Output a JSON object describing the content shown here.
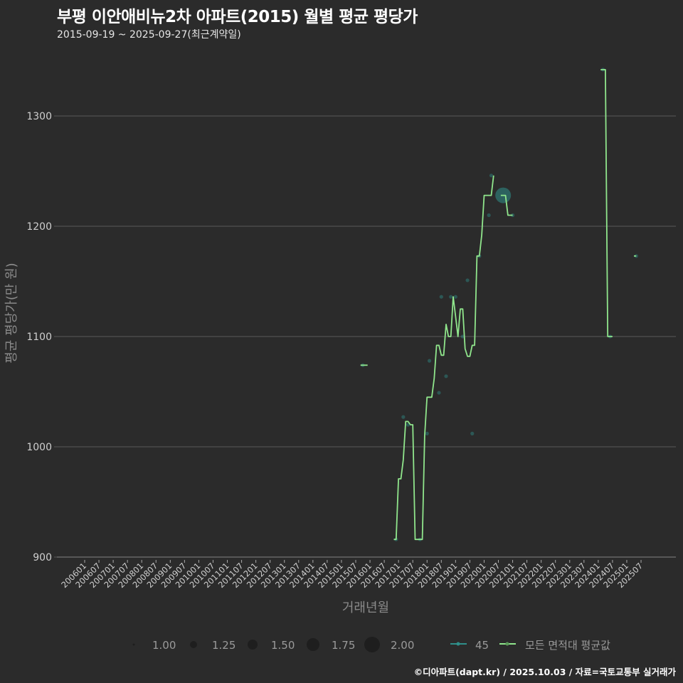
{
  "header": {
    "title": "부평 이안애비뉴2차 아파트(2015) 월별 평균 평당가",
    "subtitle": "2015-09-19 ~ 2025-09-27(최근계약일)"
  },
  "caption": "©디아파트(dapt.kr) / 2025.10.03 / 자료=국토교통부 실거래가",
  "colors": {
    "background": "#2b2b2b",
    "grid": "#5a5a5a",
    "avg_line": "#90e68c",
    "area_45": "#2f8f8a",
    "axis_text": "#cfcfcf",
    "axis_title": "#8a8a8a"
  },
  "chart_data": {
    "type": "line",
    "title": "부평 이안애비뉴2차 아파트(2015) 월별 평균 평당가",
    "subtitle": "2015-09-19 ~ 2025-09-27(최근계약일)",
    "xlabel": "거래년월",
    "ylabel": "평균 평당가(만 원)",
    "ylim": [
      895,
      1345
    ],
    "yticks": [
      900,
      1000,
      1100,
      1200,
      1300
    ],
    "xticks": [
      "200601",
      "200607",
      "200701",
      "200707",
      "200801",
      "200807",
      "200901",
      "200907",
      "201001",
      "201007",
      "201101",
      "201107",
      "201201",
      "201207",
      "201301",
      "201307",
      "201401",
      "201407",
      "201501",
      "201507",
      "201601",
      "201607",
      "201701",
      "201707",
      "201801",
      "201807",
      "201901",
      "201907",
      "202001",
      "202007",
      "202101",
      "202107",
      "202201",
      "202207",
      "202301",
      "202307",
      "202401",
      "202407",
      "202501",
      "202507"
    ],
    "grid": "horizontal",
    "legend_position": "bottom",
    "legend": {
      "size_title": "",
      "size_levels": [
        "1.00",
        "1.25",
        "1.50",
        "1.75",
        "2.00"
      ],
      "series_labels": [
        "45",
        "모든 면적대 평균값"
      ]
    },
    "series": [
      {
        "name": "모든 면적대 평균값",
        "segments": [
          [
            [
              "2015-09",
              1074
            ],
            [
              "2015-12",
              1074
            ]
          ],
          [
            [
              "2016-11",
              916
            ],
            [
              "2016-12",
              916
            ],
            [
              "2017-01",
              971
            ],
            [
              "2017-02",
              971
            ],
            [
              "2017-03",
              988
            ],
            [
              "2017-04",
              1023
            ],
            [
              "2017-05",
              1023
            ],
            [
              "2017-06",
              1020
            ],
            [
              "2017-07",
              1020
            ],
            [
              "2017-08",
              916
            ],
            [
              "2017-09",
              916
            ],
            [
              "2017-10",
              916
            ],
            [
              "2017-11",
              916
            ],
            [
              "2017-12",
              1010
            ],
            [
              "2018-01",
              1045
            ],
            [
              "2018-02",
              1045
            ],
            [
              "2018-03",
              1045
            ],
            [
              "2018-04",
              1062
            ],
            [
              "2018-05",
              1092
            ],
            [
              "2018-06",
              1092
            ],
            [
              "2018-07",
              1083
            ],
            [
              "2018-08",
              1083
            ],
            [
              "2018-09",
              1111
            ],
            [
              "2018-10",
              1100
            ],
            [
              "2018-11",
              1100
            ],
            [
              "2018-12",
              1136
            ],
            [
              "2019-01",
              1118
            ],
            [
              "2019-02",
              1100
            ],
            [
              "2019-03",
              1125
            ],
            [
              "2019-04",
              1125
            ],
            [
              "2019-05",
              1089
            ],
            [
              "2019-06",
              1082
            ],
            [
              "2019-07",
              1082
            ],
            [
              "2019-08",
              1092
            ],
            [
              "2019-09",
              1092
            ],
            [
              "2019-10",
              1173
            ],
            [
              "2019-11",
              1173
            ],
            [
              "2019-12",
              1192
            ],
            [
              "2020-01",
              1228
            ],
            [
              "2020-02",
              1228
            ],
            [
              "2020-03",
              1228
            ],
            [
              "2020-04",
              1228
            ],
            [
              "2020-05",
              1246
            ]
          ],
          [
            [
              "2020-08",
              1228
            ],
            [
              "2020-09",
              1228
            ],
            [
              "2020-10",
              1228
            ],
            [
              "2020-11",
              1210
            ],
            [
              "2020-12",
              1210
            ],
            [
              "2021-01",
              1210
            ]
          ],
          [
            [
              "2024-02",
              1342
            ],
            [
              "2024-03",
              1342
            ],
            [
              "2024-04",
              1342
            ],
            [
              "2024-05",
              1100
            ],
            [
              "2024-06",
              1100
            ],
            [
              "2024-07",
              1100
            ]
          ],
          [
            [
              "2025-04",
              1173
            ],
            [
              "2025-05",
              1173
            ]
          ]
        ]
      },
      {
        "name": "45",
        "points": [
          {
            "x": "2015-10",
            "y": 1074,
            "size": 1.0
          },
          {
            "x": "2016-12",
            "y": 916,
            "size": 1.0
          },
          {
            "x": "2017-03",
            "y": 1027,
            "size": 1.0
          },
          {
            "x": "2017-05",
            "y": 1020,
            "size": 1.0
          },
          {
            "x": "2017-10",
            "y": 916,
            "size": 1.0
          },
          {
            "x": "2018-01",
            "y": 1012,
            "size": 1.0
          },
          {
            "x": "2018-02",
            "y": 1078,
            "size": 1.0
          },
          {
            "x": "2018-06",
            "y": 1049,
            "size": 1.0
          },
          {
            "x": "2018-07",
            "y": 1136,
            "size": 1.0
          },
          {
            "x": "2018-09",
            "y": 1064,
            "size": 1.0
          },
          {
            "x": "2018-11",
            "y": 1136,
            "size": 1.0
          },
          {
            "x": "2019-01",
            "y": 1136,
            "size": 1.0
          },
          {
            "x": "2019-04",
            "y": 1100,
            "size": 1.0
          },
          {
            "x": "2019-06",
            "y": 1151,
            "size": 1.0
          },
          {
            "x": "2019-08",
            "y": 1012,
            "size": 1.0
          },
          {
            "x": "2019-11",
            "y": 1173,
            "size": 1.0
          },
          {
            "x": "2020-03",
            "y": 1210,
            "size": 1.0
          },
          {
            "x": "2020-04",
            "y": 1246,
            "size": 1.0
          },
          {
            "x": "2020-09",
            "y": 1228,
            "size": 2.0
          },
          {
            "x": "2021-01",
            "y": 1210,
            "size": 1.0
          },
          {
            "x": "2024-03",
            "y": 1342,
            "size": 1.0
          },
          {
            "x": "2024-06",
            "y": 1100,
            "size": 1.0
          },
          {
            "x": "2025-05",
            "y": 1173,
            "size": 1.0
          }
        ]
      }
    ]
  }
}
